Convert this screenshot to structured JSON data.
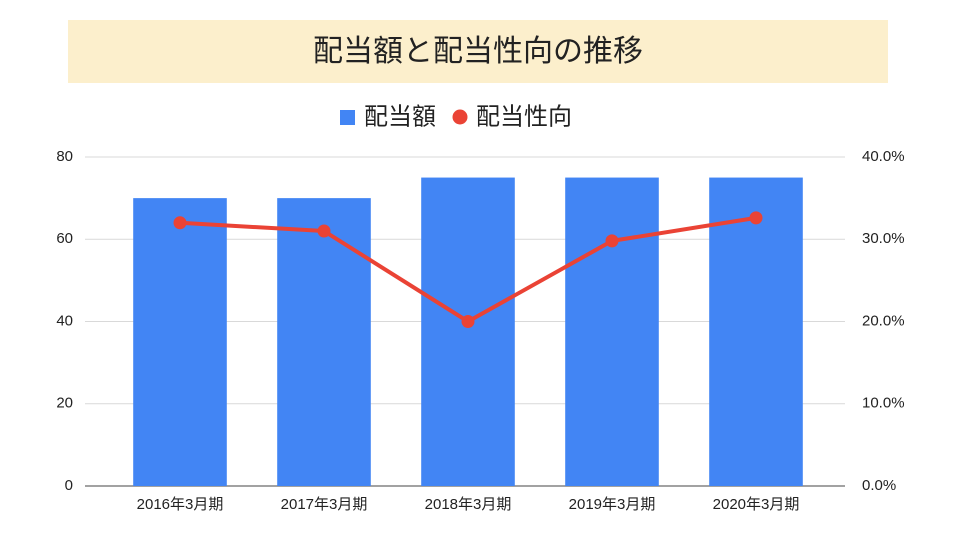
{
  "chart_data": {
    "type": "bar",
    "title": "配当額と配当性向の推移",
    "categories": [
      "2016年3月期",
      "2017年3月期",
      "2018年3月期",
      "2019年3月期",
      "2020年3月期"
    ],
    "series": [
      {
        "name": "配当額",
        "type": "bar",
        "color": "#4285f4",
        "values": [
          70,
          70,
          75,
          75,
          75
        ]
      },
      {
        "name": "配当性向",
        "type": "line",
        "axis": "y2",
        "color": "#ea4335",
        "values": [
          32.0,
          31.0,
          20.0,
          29.8,
          32.6
        ]
      }
    ],
    "ylim": [
      0,
      80
    ],
    "yticks": [
      0,
      20,
      40,
      60,
      80
    ],
    "y2lim": [
      0,
      40
    ],
    "y2ticks": [
      {
        "value": 0,
        "label": "0.0%"
      },
      {
        "value": 10,
        "label": "10.0%"
      },
      {
        "value": 20,
        "label": "20.0%"
      },
      {
        "value": 30,
        "label": "30.0%"
      },
      {
        "value": 40,
        "label": "40.0%"
      }
    ],
    "grid": true,
    "legend": "top"
  }
}
